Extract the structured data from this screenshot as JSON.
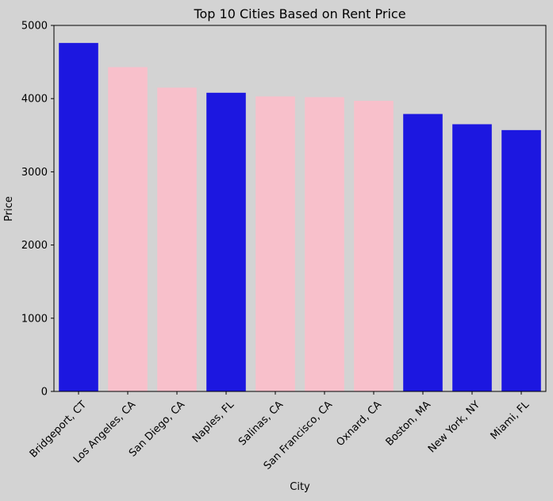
{
  "chart_data": {
    "type": "bar",
    "title": "Top 10 Cities Based on Rent Price",
    "xlabel": "City",
    "ylabel": "Price",
    "ylim": [
      0,
      5000
    ],
    "yticks": [
      "0",
      "1000",
      "2000",
      "3000",
      "4000",
      "5000"
    ],
    "categories": [
      "Bridgeport, CT",
      "Los Angeles, CA",
      "San Diego, CA",
      "Naples, FL",
      "Salinas, CA",
      "San Francisco, CA",
      "Oxnard, CA",
      "Boston, MA",
      "New York, NY",
      "Miami, FL"
    ],
    "values": [
      4760,
      4430,
      4150,
      4080,
      4030,
      4020,
      3970,
      3790,
      3650,
      3570
    ],
    "bar_colors": [
      "#1c17e0",
      "#f8c0cb",
      "#f8c0cb",
      "#1c17e0",
      "#f8c0cb",
      "#f8c0cb",
      "#f8c0cb",
      "#1c17e0",
      "#1c17e0",
      "#1c17e0"
    ],
    "grid": false,
    "legend": "none",
    "background_color": "#d3d3d3"
  }
}
